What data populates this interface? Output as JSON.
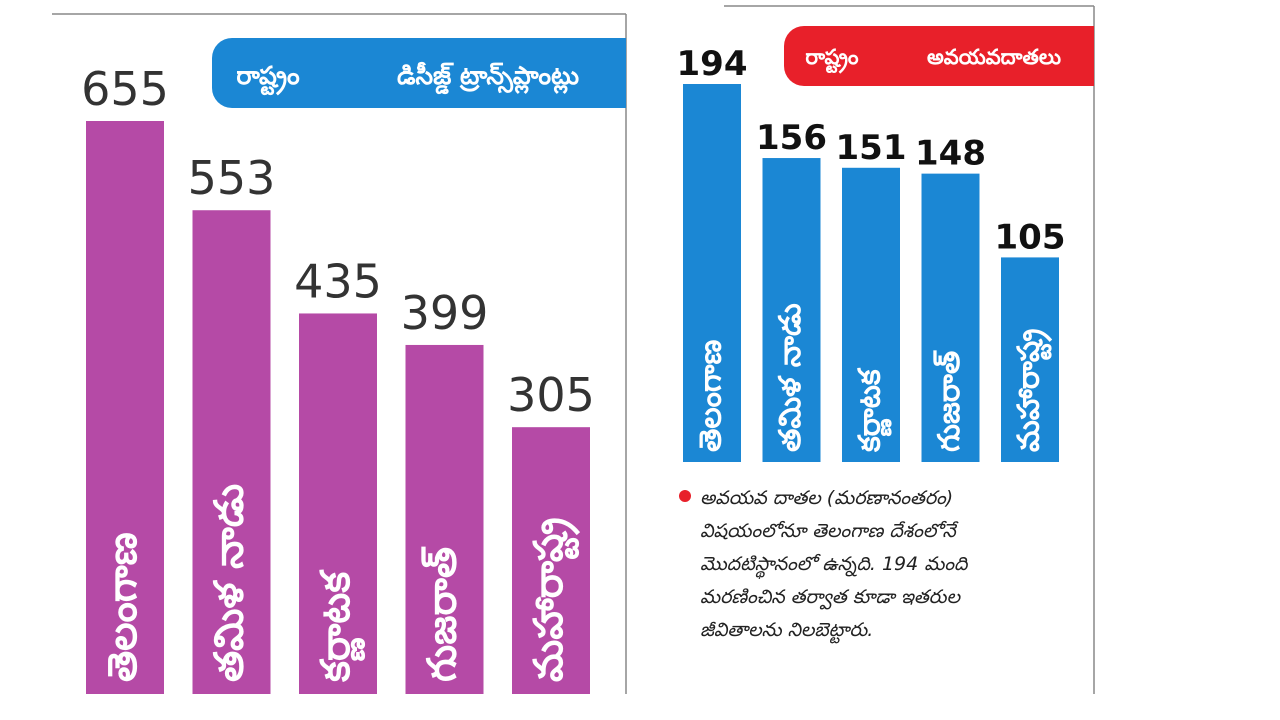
{
  "colors": {
    "left_bar": "#b54aa6",
    "right_bar": "#1b87d4",
    "left_header": "#1b87d4",
    "right_header": "#e8202a",
    "bullet": "#e8202a",
    "frame": "#888888"
  },
  "chart_data": [
    {
      "type": "bar",
      "header": {
        "state_label": "రాష్ట్రం",
        "metric_label": "డిసీజ్డ్ ట్రాన్స్‌ప్లాంట్లు"
      },
      "categories": [
        "తెలంగాణ",
        "తమిళ నాడు",
        "కర్ణాటక",
        "గుజరాత్",
        "మహారాష్ట్ర"
      ],
      "values": [
        655,
        553,
        435,
        399,
        305
      ],
      "ylim": [
        0,
        700
      ]
    },
    {
      "type": "bar",
      "header": {
        "state_label": "రాష్ట్రం",
        "metric_label": "అవయవదాతలు"
      },
      "categories": [
        "తెలంగాణ",
        "తమిళ నాడు",
        "కర్ణాటక",
        "గుజరాత్",
        "మహారాష్ట్ర"
      ],
      "values": [
        194,
        156,
        151,
        148,
        105
      ],
      "ylim": [
        0,
        200
      ]
    }
  ],
  "note": {
    "lines": [
      "అవయవ దాతల (మరణానంతరం)",
      "విషయంలోనూ తెలంగాణ దేశంలోనే",
      "మొదటిస్థానంలో ఉన్నది. 194 మంది",
      "మరణించిన తర్వాత కూడా ఇతరుల",
      "జీవితాలను నిలబెట్టారు."
    ]
  }
}
